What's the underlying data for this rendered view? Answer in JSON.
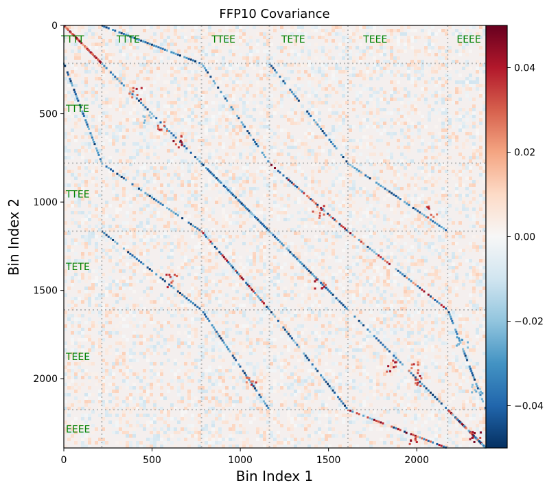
{
  "chart_data": {
    "type": "heatmap",
    "title": "FFP10 Covariance",
    "xlabel": "Bin Index 1",
    "ylabel": "Bin Index 2",
    "xlim": [
      0,
      2392
    ],
    "ylim": [
      2392,
      0
    ],
    "x_ticks": [
      0,
      500,
      1000,
      1500,
      2000
    ],
    "y_ticks": [
      0,
      500,
      1000,
      1500,
      2000
    ],
    "x_tick_labels": [
      "0",
      "500",
      "1000",
      "1500",
      "2000"
    ],
    "y_tick_labels": [
      "0",
      "500",
      "1000",
      "1500",
      "2000"
    ],
    "block_boundaries": [
      215,
      780,
      1165,
      1610,
      2175
    ],
    "block_labels_top": [
      "TTTT",
      "TTTE",
      "TTEE",
      "TETE",
      "TEEE",
      "EEEE"
    ],
    "block_labels_left": [
      "TTTE",
      "TTEE",
      "TETE",
      "TEEE",
      "EEEE"
    ],
    "block_label_top_x": [
      50,
      365,
      905,
      1300,
      1765,
      2295
    ],
    "block_label_left_y": [
      470,
      955,
      1365,
      1875,
      2285
    ],
    "label_color": "#008000",
    "colorbar": {
      "min": -0.05,
      "max": 0.05,
      "ticks": [
        0.04,
        0.02,
        0.0,
        -0.02,
        -0.04
      ],
      "tick_labels": [
        "0.04",
        "0.02",
        "0.00",
        "−0.02",
        "−0.04"
      ],
      "colormap": "RdBu_r",
      "stops": [
        "#053061",
        "#2166ac",
        "#4393c3",
        "#92c5de",
        "#d1e5f0",
        "#f7f7f7",
        "#fddbc7",
        "#f4a582",
        "#d6604d",
        "#b2182b",
        "#67001f"
      ]
    },
    "diagonal_structures": [
      {
        "x0": 0,
        "y0": 0,
        "x1": 215,
        "y1": 215,
        "sign": "pos"
      },
      {
        "x0": 215,
        "y0": 215,
        "x1": 780,
        "y1": 780,
        "sign": "neg"
      },
      {
        "x0": 780,
        "y0": 780,
        "x1": 1165,
        "y1": 1165,
        "sign": "neg"
      },
      {
        "x0": 1165,
        "y0": 1165,
        "x1": 1610,
        "y1": 1610,
        "sign": "neg"
      },
      {
        "x0": 1610,
        "y0": 1610,
        "x1": 2175,
        "y1": 2175,
        "sign": "neg"
      },
      {
        "x0": 2175,
        "y0": 2175,
        "x1": 2392,
        "y1": 2392,
        "sign": "mix"
      },
      {
        "x0": 0,
        "y0": 215,
        "x1": 215,
        "y1": 780,
        "sign": "neg"
      },
      {
        "x0": 215,
        "y0": 0,
        "x1": 780,
        "y1": 215,
        "sign": "neg"
      },
      {
        "x0": 780,
        "y0": 215,
        "x1": 1165,
        "y1": 780,
        "sign": "neg"
      },
      {
        "x0": 215,
        "y0": 780,
        "x1": 780,
        "y1": 1165,
        "sign": "neg"
      },
      {
        "x0": 1165,
        "y0": 215,
        "x1": 1610,
        "y1": 780,
        "sign": "neg"
      },
      {
        "x0": 215,
        "y0": 1165,
        "x1": 780,
        "y1": 1610,
        "sign": "neg"
      },
      {
        "x0": 1610,
        "y0": 780,
        "x1": 2175,
        "y1": 1165,
        "sign": "neg"
      },
      {
        "x0": 780,
        "y0": 1610,
        "x1": 1165,
        "y1": 2175,
        "sign": "neg"
      },
      {
        "x0": 1165,
        "y0": 780,
        "x1": 1610,
        "y1": 1165,
        "sign": "mix"
      },
      {
        "x0": 780,
        "y0": 1165,
        "x1": 1165,
        "y1": 1610,
        "sign": "mix"
      },
      {
        "x0": 1610,
        "y0": 1165,
        "x1": 2175,
        "y1": 1610,
        "sign": "mix"
      },
      {
        "x0": 1165,
        "y0": 1610,
        "x1": 1610,
        "y1": 2175,
        "sign": "neg"
      },
      {
        "x0": 2175,
        "y0": 1610,
        "x1": 2392,
        "y1": 2175,
        "sign": "neg"
      },
      {
        "x0": 1610,
        "y0": 2175,
        "x1": 2175,
        "y1": 2392,
        "sign": "mix"
      },
      {
        "x0": 1165,
        "y0": 1165,
        "x1": 1610,
        "y1": 1610,
        "sign": "neg"
      },
      {
        "x0": 780,
        "y0": 780,
        "x1": 1165,
        "y1": 1165,
        "sign": "neg"
      }
    ],
    "hotspots": [
      {
        "x": 400,
        "y": 380,
        "v": 0.045
      },
      {
        "x": 550,
        "y": 560,
        "v": 0.04
      },
      {
        "x": 640,
        "y": 650,
        "v": 0.05
      },
      {
        "x": 470,
        "y": 520,
        "v": -0.03
      },
      {
        "x": 1450,
        "y": 1460,
        "v": 0.045
      },
      {
        "x": 1440,
        "y": 1050,
        "v": 0.04
      },
      {
        "x": 1850,
        "y": 1920,
        "v": 0.045
      },
      {
        "x": 1970,
        "y": 1930,
        "v": 0.04
      },
      {
        "x": 2000,
        "y": 2000,
        "v": 0.045
      },
      {
        "x": 2080,
        "y": 1050,
        "v": 0.04
      },
      {
        "x": 2330,
        "y": 2320,
        "v": 0.05
      },
      {
        "x": 2250,
        "y": 1790,
        "v": -0.035
      },
      {
        "x": 2340,
        "y": 2050,
        "v": -0.03
      },
      {
        "x": 1965,
        "y": 2330,
        "v": 0.05
      },
      {
        "x": 600,
        "y": 1440,
        "v": 0.04
      },
      {
        "x": 1060,
        "y": 2010,
        "v": 0.04
      }
    ]
  }
}
